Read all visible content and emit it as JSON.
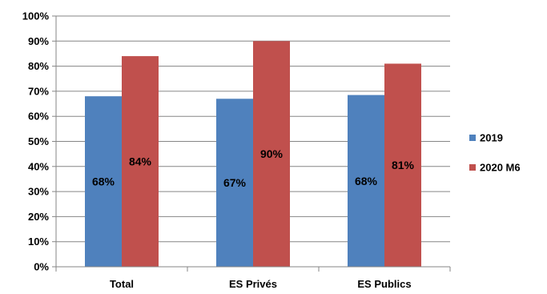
{
  "chart_data": {
    "type": "bar",
    "categories": [
      "Total",
      "ES Privés",
      "ES Publics"
    ],
    "series": [
      {
        "name": "2019",
        "values": [
          68,
          67,
          68.5
        ],
        "data_labels": [
          "68%",
          "67%",
          "68%"
        ],
        "color": "#4F81BD"
      },
      {
        "name": "2020 M6",
        "values": [
          84,
          90,
          81
        ],
        "data_labels": [
          "84%",
          "90%",
          "81%"
        ],
        "color": "#C0504D"
      }
    ],
    "y_ticks": [
      0,
      10,
      20,
      30,
      40,
      50,
      60,
      70,
      80,
      90,
      100
    ],
    "y_tick_labels": [
      "0%",
      "10%",
      "20%",
      "30%",
      "40%",
      "50%",
      "60%",
      "70%",
      "80%",
      "90%",
      "100%"
    ],
    "ylim": [
      0,
      100
    ],
    "grid": true,
    "legend_position": "right"
  }
}
